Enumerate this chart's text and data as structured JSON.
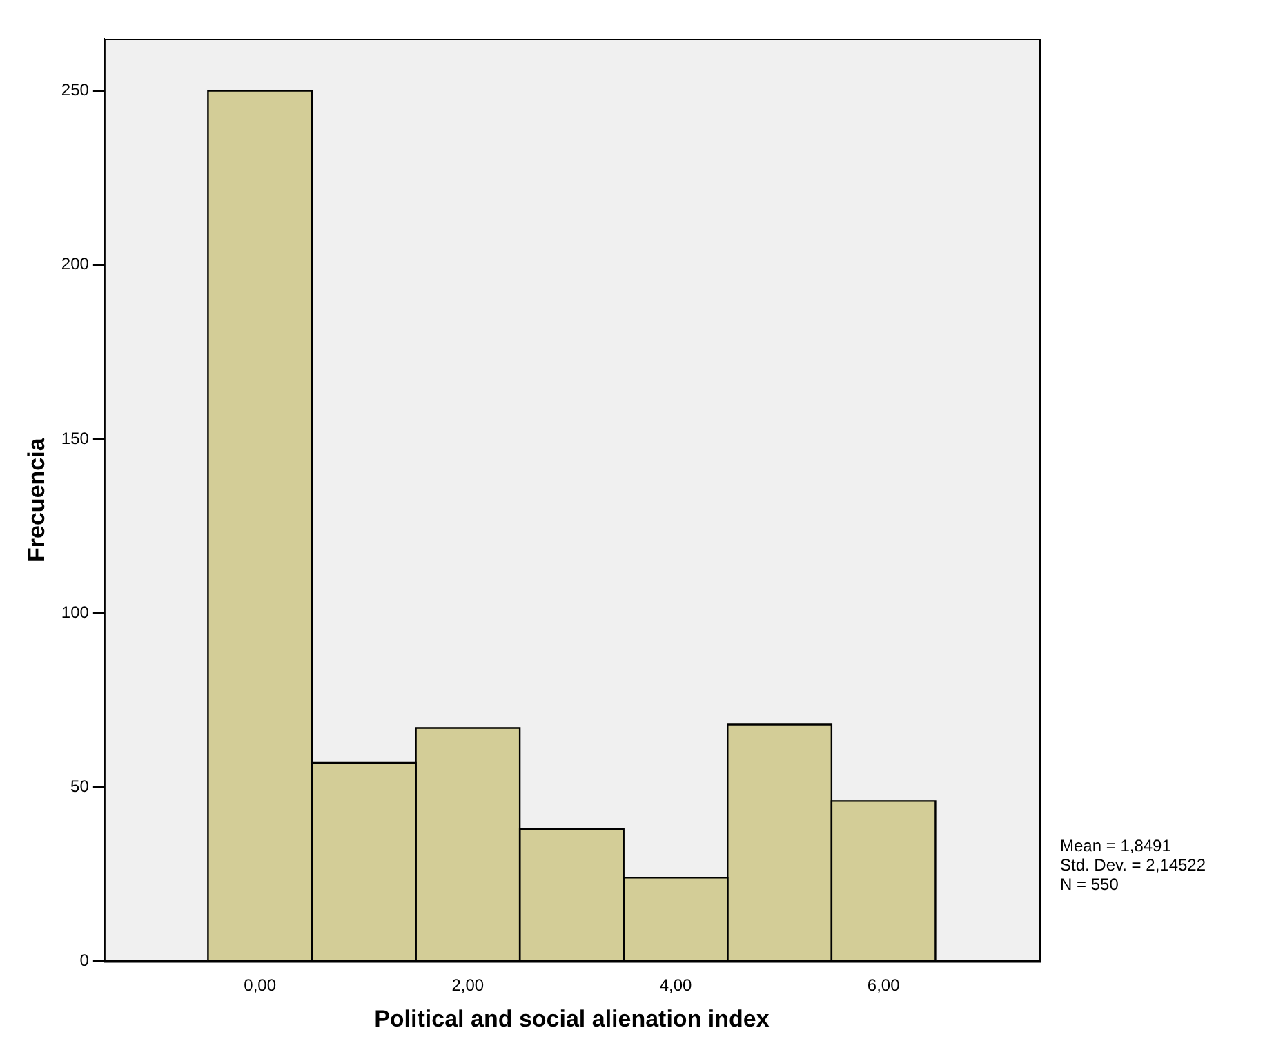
{
  "chart_data": {
    "type": "histogram",
    "xlabel": "Political and social alienation index",
    "ylabel": "Frecuencia",
    "bins": [
      -0.5,
      0.5,
      1.5,
      2.5,
      3.5,
      4.5,
      5.5,
      6.5
    ],
    "values": [
      250,
      57,
      67,
      38,
      24,
      68,
      46
    ],
    "color": "#d3cd97",
    "xlim": [
      -1.5,
      7.5
    ],
    "xticks": [
      {
        "value": 0,
        "label": "0,00"
      },
      {
        "value": 2,
        "label": "2,00"
      },
      {
        "value": 4,
        "label": "4,00"
      },
      {
        "value": 6,
        "label": "6,00"
      }
    ],
    "ylim": [
      0,
      265
    ],
    "yticks": [
      0,
      50,
      100,
      150,
      200,
      250
    ],
    "grid": false,
    "annotations": [
      "Mean = 1,8491",
      "Std. Dev. = 2,14522",
      "N = 550"
    ]
  }
}
